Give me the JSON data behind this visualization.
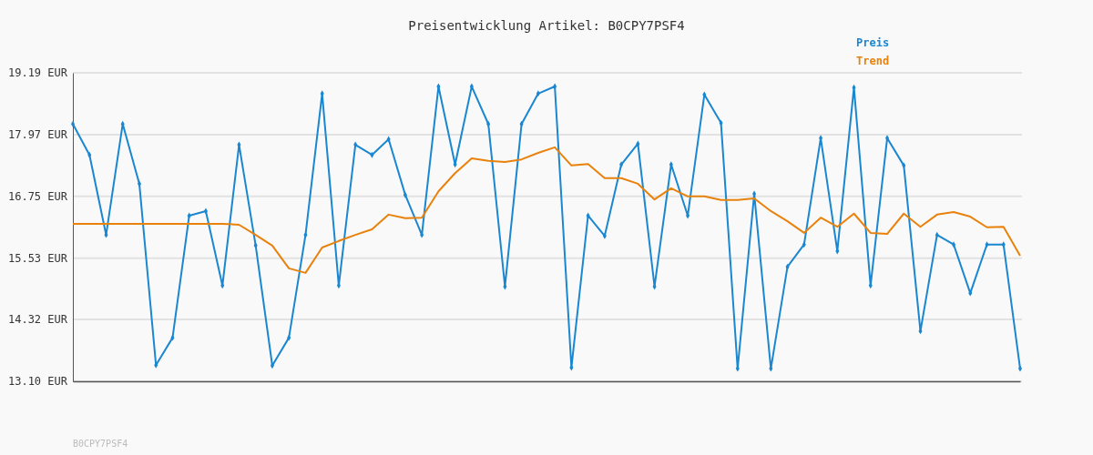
{
  "chart_data": {
    "type": "line",
    "title": "Preisentwicklung Artikel: B0CPY7PSF4",
    "annotations": [
      "B0CPY7PSF4"
    ],
    "categories": [
      null,
      null,
      null,
      null,
      null,
      null,
      null,
      null,
      null,
      null,
      null,
      null,
      null,
      null,
      null,
      null,
      null,
      null,
      null,
      null,
      null,
      null,
      null,
      null,
      null,
      null,
      null,
      null,
      null,
      null,
      null,
      null,
      null,
      null,
      null,
      null,
      null,
      null,
      null,
      null,
      null,
      null,
      null,
      null,
      null,
      null,
      null,
      null,
      null,
      null,
      null,
      null,
      null,
      null,
      null,
      null,
      null,
      null
    ],
    "series": [
      {
        "name": "Preis",
        "color": "#1a87d0",
        "marker": "diamond",
        "values": [
          18.18,
          17.57,
          15.99,
          18.18,
          17.0,
          13.42,
          13.96,
          16.37,
          16.46,
          14.99,
          17.77,
          15.78,
          13.41,
          13.96,
          15.99,
          18.78,
          14.99,
          17.77,
          17.57,
          17.88,
          16.78,
          15.99,
          18.92,
          17.38,
          18.92,
          18.18,
          14.97,
          18.18,
          18.78,
          18.92,
          13.37,
          16.37,
          15.97,
          17.38,
          17.79,
          14.97,
          17.38,
          16.37,
          18.76,
          18.2,
          13.35,
          16.8,
          13.35,
          15.36,
          15.8,
          17.9,
          15.67,
          18.9,
          14.99,
          17.9,
          17.36,
          14.09,
          15.99,
          15.8,
          14.84,
          15.8,
          15.8,
          13.35
        ]
      },
      {
        "name": "Trend",
        "color": "#e8820c",
        "marker": "none",
        "values": [
          16.21,
          16.21,
          16.21,
          16.21,
          16.21,
          16.21,
          16.21,
          16.21,
          16.21,
          16.21,
          16.19,
          15.99,
          15.78,
          15.33,
          15.24,
          15.74,
          15.87,
          15.99,
          16.1,
          16.39,
          16.32,
          16.33,
          16.85,
          17.21,
          17.5,
          17.45,
          17.43,
          17.48,
          17.61,
          17.72,
          17.36,
          17.39,
          17.11,
          17.11,
          17.0,
          16.69,
          16.91,
          16.75,
          16.75,
          16.68,
          16.68,
          16.71,
          16.46,
          16.26,
          16.03,
          16.33,
          16.15,
          16.41,
          16.03,
          16.01,
          16.41,
          16.15,
          16.39,
          16.44,
          16.35,
          16.14,
          16.15,
          15.58
        ]
      }
    ],
    "ylim": [
      13.1,
      19.19
    ],
    "yticks": [
      {
        "value": 13.1,
        "label": "13.10 EUR"
      },
      {
        "value": 14.32,
        "label": "14.32 EUR"
      },
      {
        "value": 15.53,
        "label": "15.53 EUR"
      },
      {
        "value": 16.75,
        "label": "16.75 EUR"
      },
      {
        "value": 17.97,
        "label": "17.97 EUR"
      },
      {
        "value": 19.19,
        "label": "19.19 EUR"
      }
    ],
    "grid": "y",
    "legend": "top right",
    "line_style": "solid"
  }
}
